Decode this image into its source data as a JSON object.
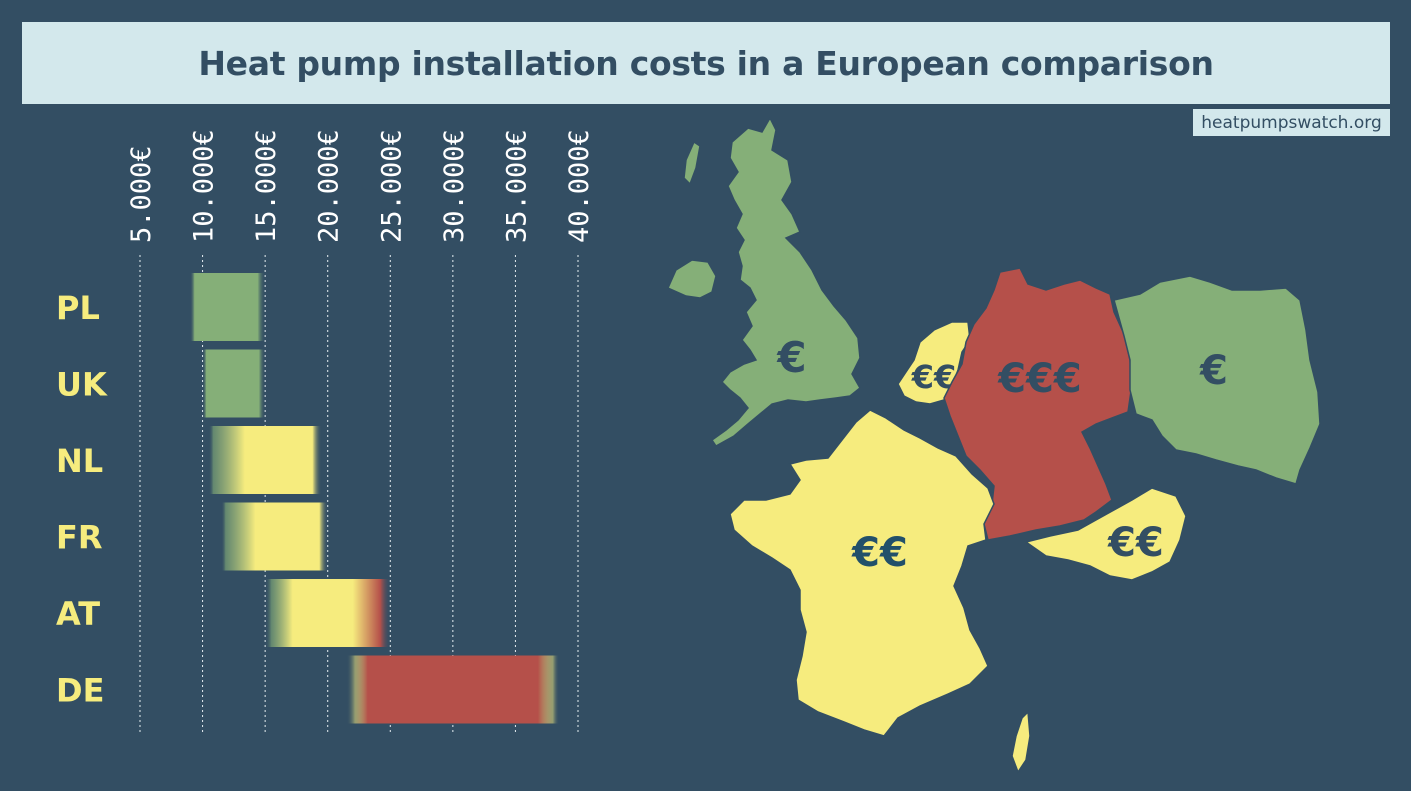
{
  "title": "Heat pump installation costs in a European comparison",
  "source": "heatpumpswatch.org",
  "colors": {
    "background": "#334e63",
    "banner": "#d3e8ec",
    "low": "#85af78",
    "mid": "#f6ec7e",
    "high": "#b5504a",
    "label": "#f6ec7e",
    "price_text": "#334e63"
  },
  "chart_data": {
    "type": "bar",
    "orientation": "horizontal-range",
    "x_ticks": [
      "5.000€",
      "10.000€",
      "15.000€",
      "20.000€",
      "25.000€",
      "30.000€",
      "35.000€",
      "40.000€"
    ],
    "xlim": [
      5000,
      40000
    ],
    "grid": true,
    "categories": [
      "PL",
      "UK",
      "NL",
      "FR",
      "AT",
      "DE"
    ],
    "ranges": [
      {
        "country": "PL",
        "min": 9000,
        "max": 15000,
        "tier": "low"
      },
      {
        "country": "UK",
        "min": 10000,
        "max": 15000,
        "tier": "low"
      },
      {
        "country": "NL",
        "min": 10500,
        "max": 19500,
        "tier": "mid"
      },
      {
        "country": "FR",
        "min": 11500,
        "max": 20000,
        "tier": "mid"
      },
      {
        "country": "AT",
        "min": 15000,
        "max": 25000,
        "tier": "mid-high"
      },
      {
        "country": "DE",
        "min": 21500,
        "max": 38500,
        "tier": "high"
      }
    ]
  },
  "map": {
    "regions": [
      {
        "name": "UK",
        "price": "€",
        "tier": "low"
      },
      {
        "name": "NL",
        "price": "€€",
        "tier": "mid"
      },
      {
        "name": "DE",
        "price": "€€€",
        "tier": "high"
      },
      {
        "name": "PL",
        "price": "€",
        "tier": "low"
      },
      {
        "name": "FR",
        "price": "€€",
        "tier": "mid"
      },
      {
        "name": "AT",
        "price": "€€",
        "tier": "mid"
      }
    ]
  }
}
